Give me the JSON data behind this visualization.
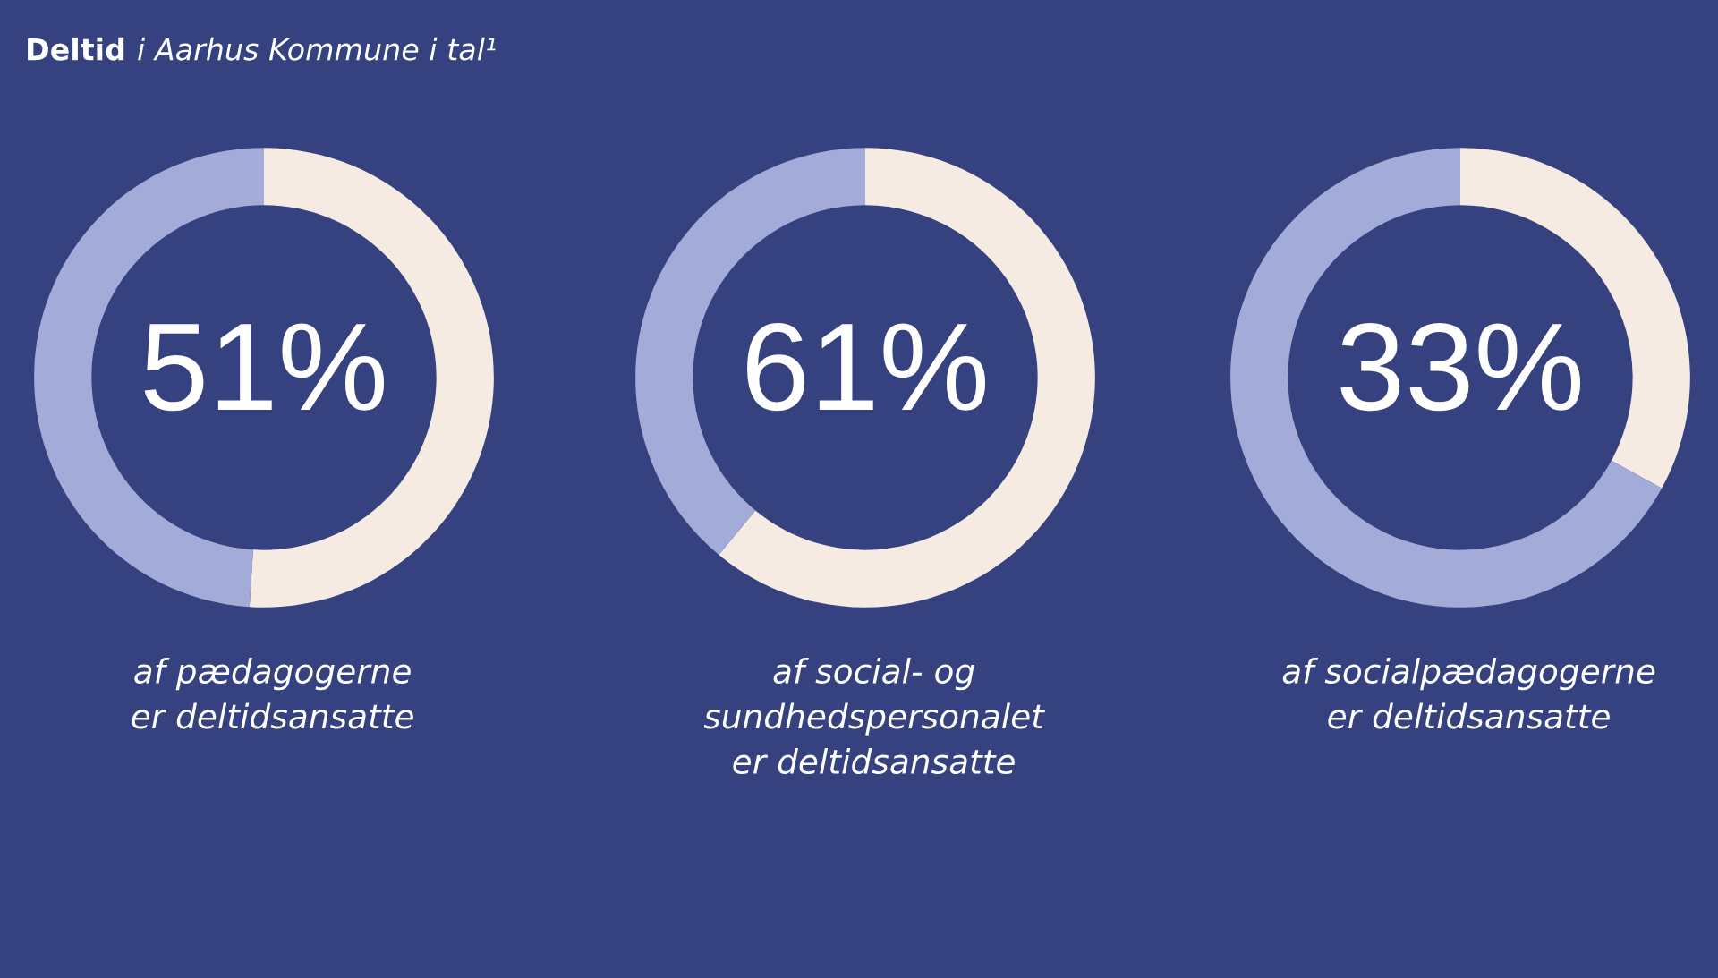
{
  "chart_data": [
    {
      "type": "donut",
      "title": "Deltid i Aarhus Kommune i tal¹",
      "subtitle": "af pædagogerne\ner deltidsansatte",
      "categories": [
        null,
        null
      ],
      "values": [
        51,
        49
      ],
      "colors": [
        "#f5ebe3",
        "#a3acd8"
      ],
      "value_labels": [
        "51%",
        null
      ]
    },
    {
      "type": "donut",
      "subtitle": "af social- og\nsundhedspersonalet\ner deltidsansatte",
      "categories": [
        null,
        null
      ],
      "values": [
        61,
        39
      ],
      "colors": [
        "#f5ebe3",
        "#a3acd8"
      ],
      "value_labels": [
        "61%",
        null
      ]
    },
    {
      "type": "donut",
      "subtitle": "af socialpædagogerne\ner deltidsansatte",
      "categories": [
        null,
        null
      ],
      "values": [
        33,
        67
      ],
      "colors": [
        "#f5ebe3",
        "#a3acd8"
      ],
      "value_labels": [
        "33%",
        null
      ]
    }
  ]
}
